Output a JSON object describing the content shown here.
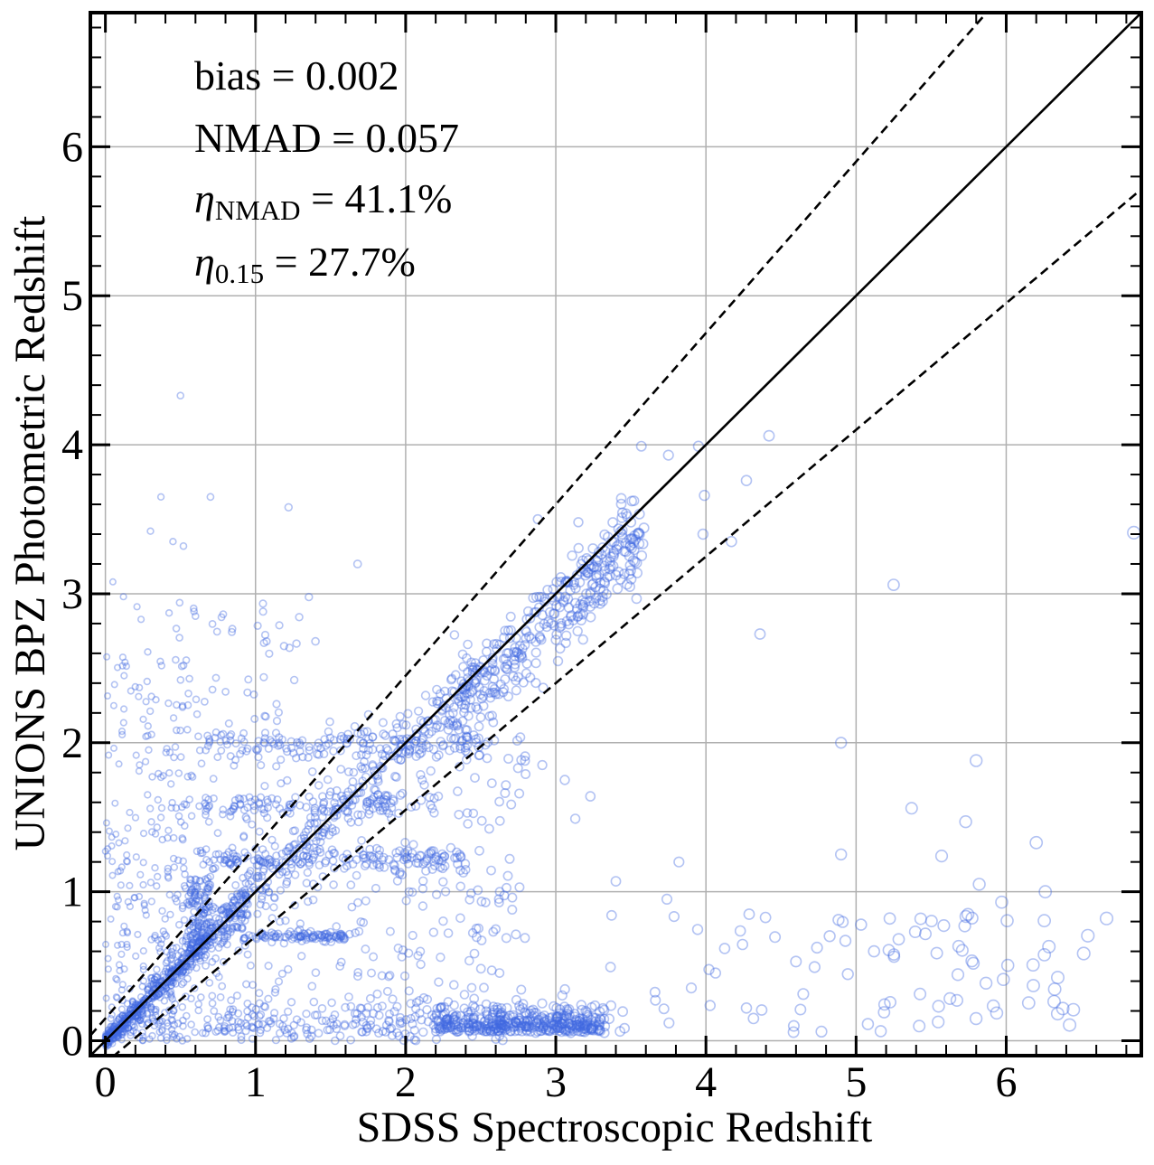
{
  "chart_data": {
    "type": "scatter",
    "xlabel": "SDSS Spectroscopic Redshift",
    "ylabel": "UNIONS BPZ Photometric Redshift",
    "xlim": [
      -0.1,
      6.9
    ],
    "ylim": [
      -0.1,
      6.9
    ],
    "xticks": [
      0,
      1,
      2,
      3,
      4,
      5,
      6
    ],
    "yticks": [
      0,
      1,
      2,
      3,
      4,
      5,
      6
    ],
    "xtick_labels": [
      "0",
      "1",
      "2",
      "3",
      "4",
      "5",
      "6"
    ],
    "ytick_labels": [
      "0",
      "1",
      "2",
      "3",
      "4",
      "5",
      "6"
    ],
    "grid": true,
    "marker": "open circle",
    "colors": {
      "points": "#4169E1",
      "lines": "#000000",
      "grid": "#b0b0b0"
    },
    "reference_lines": [
      {
        "name": "one-to-one",
        "style": "solid",
        "slope": 1.0,
        "intercept": 0.0
      },
      {
        "name": "outlier-upper",
        "style": "dashed",
        "slope": 1.15,
        "intercept": 0.15
      },
      {
        "name": "outlier-lower",
        "style": "dashed",
        "slope": 0.85,
        "intercept": -0.15
      }
    ],
    "stats": [
      {
        "label": "bias",
        "sub": "",
        "text": " = 0.002"
      },
      {
        "label": "NMAD",
        "sub": "",
        "text": " = 0.057"
      },
      {
        "label": "η",
        "sub": "NMAD",
        "text": " = 41.1%"
      },
      {
        "label": "η",
        "sub": "0.15",
        "text": " = 27.7%"
      }
    ],
    "highlighted_points": [
      [
        0.5,
        4.33
      ],
      [
        0.7,
        3.65
      ],
      [
        0.37,
        3.65
      ],
      [
        1.22,
        3.58
      ],
      [
        0.45,
        3.35
      ],
      [
        0.52,
        3.32
      ],
      [
        0.3,
        3.42
      ],
      [
        1.68,
        3.2
      ],
      [
        0.05,
        3.08
      ],
      [
        0.12,
        2.98
      ],
      [
        1.05,
        2.88
      ],
      [
        0.6,
        2.85
      ],
      [
        6.85,
        3.41
      ],
      [
        5.25,
        3.06
      ],
      [
        4.42,
        4.06
      ],
      [
        3.95,
        3.99
      ],
      [
        3.57,
        3.99
      ],
      [
        4.27,
        3.76
      ],
      [
        3.75,
        3.93
      ],
      [
        4.17,
        3.35
      ],
      [
        3.99,
        3.66
      ],
      [
        3.98,
        3.4
      ],
      [
        4.36,
        2.73
      ],
      [
        3.15,
        3.48
      ],
      [
        2.88,
        3.5
      ],
      [
        4.9,
        2.0
      ],
      [
        5.8,
        1.88
      ],
      [
        5.37,
        1.56
      ],
      [
        5.73,
        1.47
      ],
      [
        5.57,
        1.24
      ],
      [
        4.9,
        1.25
      ],
      [
        6.2,
        1.33
      ],
      [
        6.26,
        1.0
      ],
      [
        5.82,
        1.05
      ],
      [
        5.97,
        0.93
      ],
      [
        3.74,
        0.95
      ],
      [
        3.82,
        1.2
      ],
      [
        3.4,
        1.07
      ],
      [
        3.06,
        1.75
      ],
      [
        2.91,
        1.85
      ],
      [
        3.13,
        1.49
      ],
      [
        3.23,
        1.64
      ]
    ]
  }
}
